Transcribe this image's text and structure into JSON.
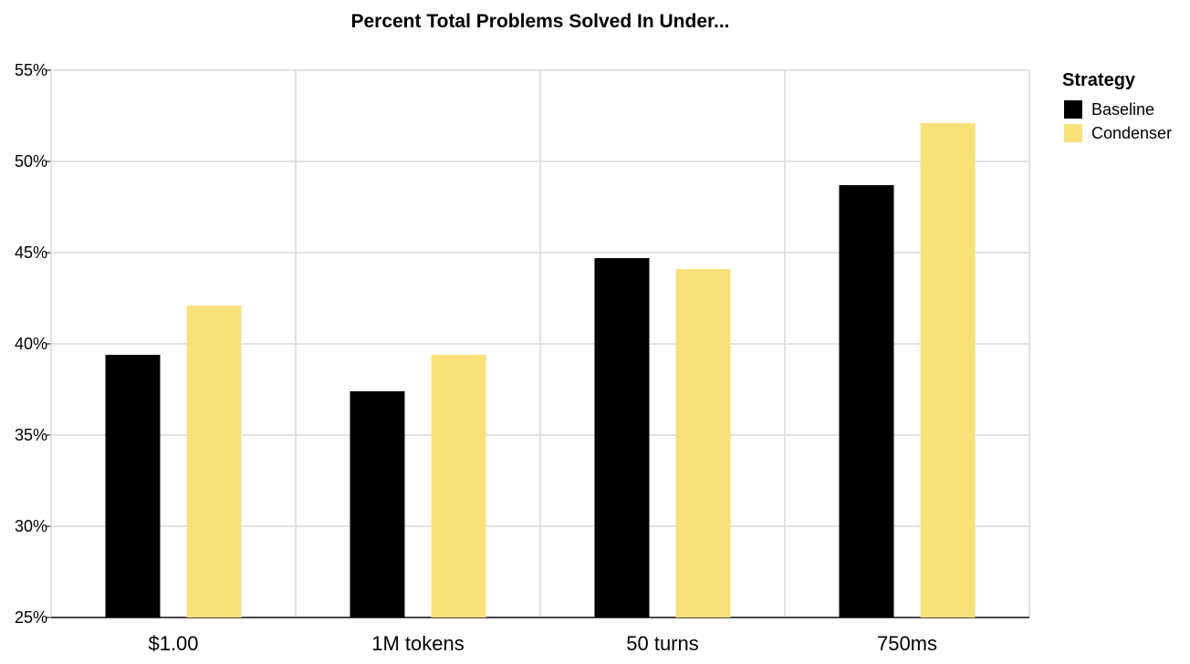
{
  "chart_data": {
    "type": "bar",
    "title": "Percent Total Problems Solved In Under...",
    "xlabel": "",
    "ylabel": "",
    "categories": [
      "$1.00",
      "1M tokens",
      "50 turns",
      "750ms"
    ],
    "series": [
      {
        "name": "Baseline",
        "color": "#000000",
        "values": [
          39.4,
          37.4,
          44.7,
          48.7
        ]
      },
      {
        "name": "Condenser",
        "color": "#f9e17a",
        "values": [
          42.1,
          39.4,
          44.1,
          52.1
        ]
      }
    ],
    "ylim": [
      25,
      55
    ],
    "yticks": [
      25,
      30,
      35,
      40,
      45,
      50,
      55
    ],
    "ytick_labels": [
      "25%",
      "30%",
      "35%",
      "40%",
      "45%",
      "50%",
      "55%"
    ],
    "grid": true,
    "legend": {
      "title": "Strategy",
      "placement": "top-right"
    },
    "colors": {
      "grid": "#d9d9d9",
      "axis": "#000000",
      "background": "#ffffff"
    }
  }
}
